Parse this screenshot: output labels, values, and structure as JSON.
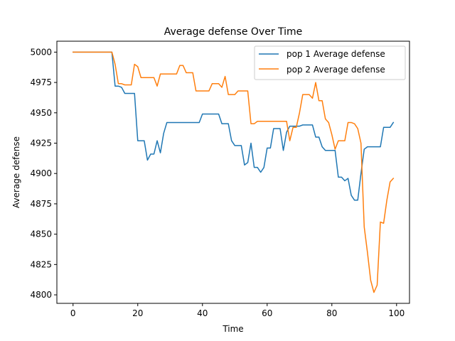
{
  "chart_data": {
    "type": "line",
    "title": "Average defense Over Time",
    "xlabel": "Time",
    "ylabel": "Average defense",
    "xlim": [
      -5,
      104
    ],
    "ylim": [
      4793,
      5009
    ],
    "xticks": [
      0,
      20,
      40,
      60,
      80,
      100
    ],
    "yticks": [
      4800,
      4825,
      4850,
      4875,
      4900,
      4925,
      4950,
      4975,
      5000
    ],
    "grid": false,
    "legend": "top-right",
    "x": [
      0,
      1,
      2,
      3,
      4,
      5,
      6,
      7,
      8,
      9,
      10,
      11,
      12,
      13,
      14,
      15,
      16,
      17,
      18,
      19,
      20,
      21,
      22,
      23,
      24,
      25,
      26,
      27,
      28,
      29,
      30,
      31,
      32,
      33,
      34,
      35,
      36,
      37,
      38,
      39,
      40,
      41,
      42,
      43,
      44,
      45,
      46,
      47,
      48,
      49,
      50,
      51,
      52,
      53,
      54,
      55,
      56,
      57,
      58,
      59,
      60,
      61,
      62,
      63,
      64,
      65,
      66,
      67,
      68,
      69,
      70,
      71,
      72,
      73,
      74,
      75,
      76,
      77,
      78,
      79,
      80,
      81,
      82,
      83,
      84,
      85,
      86,
      87,
      88,
      89,
      90,
      91,
      92,
      93,
      94,
      95,
      96,
      97,
      98,
      99
    ],
    "series": [
      {
        "name": "pop 1 Average defense",
        "color": "#1f77b4",
        "values": [
          5000,
          5000,
          5000,
          5000,
          5000,
          5000,
          5000,
          5000,
          5000,
          5000,
          5000,
          5000,
          5000,
          4972,
          4972,
          4971,
          4966,
          4966,
          4966,
          4966,
          4927,
          4927,
          4927,
          4911,
          4916,
          4916,
          4927,
          4917,
          4933,
          4942,
          4942,
          4942,
          4942,
          4942,
          4942,
          4942,
          4942,
          4942,
          4942,
          4942,
          4949,
          4949,
          4949,
          4949,
          4949,
          4949,
          4941,
          4941,
          4941,
          4927,
          4923,
          4923,
          4923,
          4907,
          4909,
          4925,
          4905,
          4905,
          4901,
          4905,
          4921,
          4921,
          4937,
          4937,
          4937,
          4919,
          4934,
          4939,
          4939,
          4939,
          4939,
          4940,
          4940,
          4940,
          4940,
          4930,
          4930,
          4922,
          4919,
          4919,
          4919,
          4919,
          4897,
          4897,
          4894,
          4896,
          4882,
          4878,
          4878,
          4900,
          4920,
          4922,
          4922,
          4922,
          4922,
          4922,
          4938,
          4938,
          4938,
          4942
        ]
      },
      {
        "name": "pop 2 Average defense",
        "color": "#ff7f0e",
        "values": [
          5000,
          5000,
          5000,
          5000,
          5000,
          5000,
          5000,
          5000,
          5000,
          5000,
          5000,
          5000,
          5000,
          4990,
          4974,
          4974,
          4973,
          4973,
          4973,
          4990,
          4988,
          4979,
          4979,
          4979,
          4979,
          4979,
          4972,
          4982,
          4982,
          4982,
          4982,
          4982,
          4982,
          4989,
          4989,
          4983,
          4983,
          4983,
          4968,
          4968,
          4968,
          4968,
          4968,
          4974,
          4974,
          4974,
          4971,
          4980,
          4965,
          4965,
          4965,
          4968,
          4968,
          4968,
          4968,
          4941,
          4941,
          4943,
          4943,
          4943,
          4943,
          4943,
          4943,
          4943,
          4943,
          4943,
          4943,
          4927,
          4938,
          4938,
          4950,
          4965,
          4965,
          4965,
          4962,
          4975,
          4960,
          4960,
          4945,
          4942,
          4932,
          4920,
          4927,
          4927,
          4927,
          4942,
          4942,
          4941,
          4937,
          4925,
          4856,
          4835,
          4812,
          4802,
          4808,
          4860,
          4859,
          4878,
          4893,
          4896
        ]
      }
    ]
  }
}
